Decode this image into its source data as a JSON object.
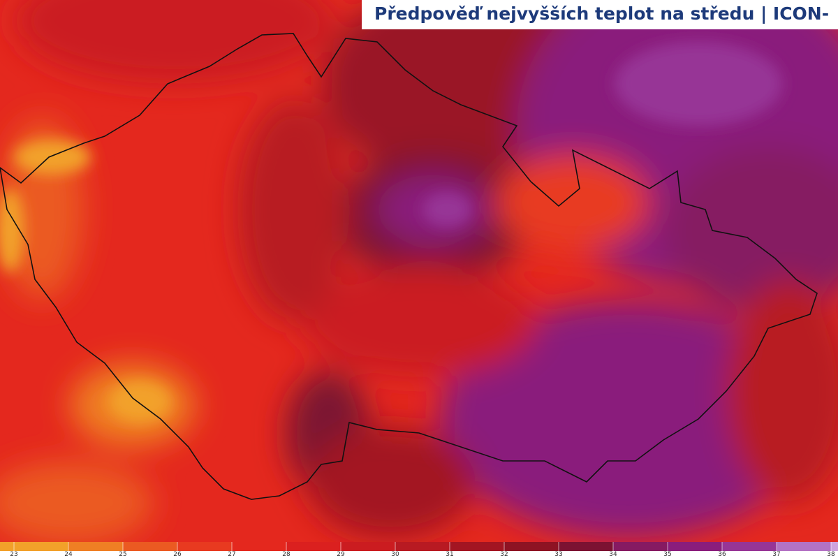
{
  "header": {
    "title": "Předpověď nejvyšších teplot na středu | ICON-"
  },
  "colorbar": {
    "ticks": [
      23,
      24,
      25,
      26,
      27,
      28,
      29,
      30,
      31,
      32,
      33,
      34,
      35,
      36,
      37,
      38
    ],
    "colors": [
      "#f2a12a",
      "#ef7f24",
      "#eb5a22",
      "#e83a20",
      "#e4281e",
      "#db201f",
      "#cb1c20",
      "#b81a22",
      "#a31522",
      "#8e1323",
      "#7c1232",
      "#861a62",
      "#8a1d7c",
      "#973596",
      "#b372c4",
      "#cfa2de"
    ]
  }
}
